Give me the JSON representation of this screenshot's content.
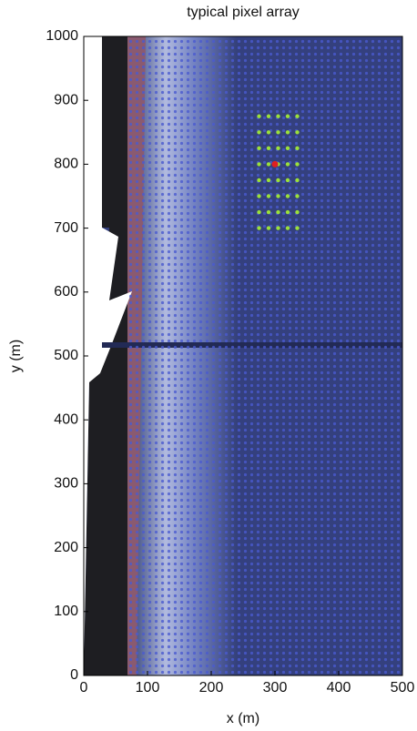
{
  "chart_data": {
    "type": "scatter",
    "title": "typical pixel array",
    "x_label": "x (m)",
    "y_label": "y (m)",
    "xlim": [
      0,
      500
    ],
    "ylim": [
      0,
      1000
    ],
    "xticks": [
      0,
      100,
      200,
      300,
      400,
      500
    ],
    "yticks": [
      0,
      100,
      200,
      300,
      400,
      500,
      600,
      700,
      800,
      900,
      1000
    ],
    "series": [
      {
        "color": "#9be03a",
        "x": [
          275,
          290,
          305,
          320,
          335,
          275,
          290,
          305,
          320,
          335,
          275,
          290,
          305,
          320,
          335,
          275,
          290,
          305,
          320,
          335,
          275,
          290,
          305,
          320,
          335,
          275,
          290,
          305,
          320,
          335,
          275,
          290,
          305,
          320,
          335,
          275,
          290,
          305,
          320,
          335
        ],
        "values": [
          700,
          700,
          700,
          700,
          700,
          725,
          725,
          725,
          725,
          725,
          750,
          750,
          750,
          750,
          750,
          775,
          775,
          775,
          775,
          775,
          800,
          800,
          800,
          800,
          800,
          825,
          825,
          825,
          825,
          825,
          850,
          850,
          850,
          850,
          850,
          875,
          875,
          875,
          875,
          875
        ]
      },
      {
        "color": "#e02020",
        "x": [
          300
        ],
        "values": [
          800
        ]
      }
    ]
  }
}
